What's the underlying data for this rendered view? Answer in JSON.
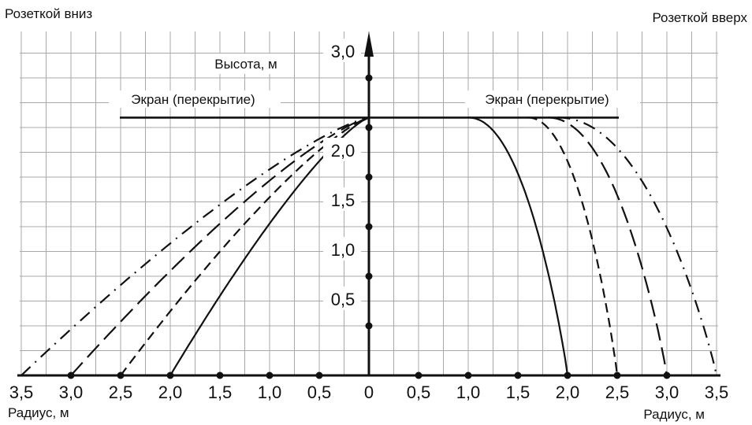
{
  "labels": {
    "top_left": "Розеткой вниз",
    "top_right": "Розеткой вверх",
    "bottom_left": "Радиус, м",
    "bottom_right": "Радиус, м",
    "y_axis": "Высота, м",
    "screen_left": "Экран (перекрытие)",
    "screen_right": "Экран (перекрытие)"
  },
  "axes": {
    "x_ticks": [
      "3,5",
      "3,0",
      "2,5",
      "2,0",
      "1,5",
      "1,0",
      "0,5",
      "0",
      "0,5",
      "1,0",
      "1,5",
      "2,0",
      "2,5",
      "3,0",
      "3,5"
    ],
    "x_tick_values": [
      -3.5,
      -3.0,
      -2.5,
      -2.0,
      -1.5,
      -1.0,
      -0.5,
      0,
      0.5,
      1.0,
      1.5,
      2.0,
      2.5,
      3.0,
      3.5
    ],
    "y_ticks": [
      "0,5",
      "1,0",
      "1,5",
      "2,0",
      "3,0"
    ],
    "y_tick_values": [
      0.5,
      1.0,
      1.5,
      2.0,
      3.0
    ],
    "x_range": [
      -3.5,
      3.5
    ],
    "y_range": [
      0,
      3.5
    ],
    "screen_height": 2.6,
    "grid": true
  },
  "curves_down": [
    {
      "style": "solid",
      "radius": 2.0
    },
    {
      "style": "short-dash",
      "radius": 2.5
    },
    {
      "style": "long-dash",
      "radius": 3.0
    },
    {
      "style": "dash-dot",
      "radius": 3.5
    }
  ],
  "curves_up": [
    {
      "style": "solid",
      "radius": 2.0,
      "flat_until": 1.0
    },
    {
      "style": "short-dash",
      "radius": 2.5,
      "flat_until": 1.6
    },
    {
      "style": "long-dash",
      "radius": 3.0,
      "flat_until": 1.8
    },
    {
      "style": "dash-dot",
      "radius": 3.5,
      "flat_until": 1.9
    }
  ]
}
